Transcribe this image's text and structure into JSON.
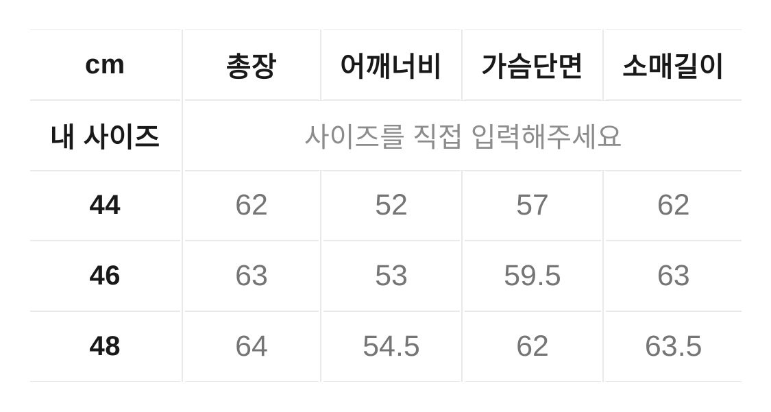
{
  "size_chart": {
    "unit_header": "cm",
    "columns": [
      {
        "key": "total-length",
        "label": "총장"
      },
      {
        "key": "shoulder-width",
        "label": "어깨너비"
      },
      {
        "key": "chest-width",
        "label": "가슴단면"
      },
      {
        "key": "sleeve-length",
        "label": "소매길이"
      }
    ],
    "my_size": {
      "label": "내 사이즈",
      "placeholder": "사이즈를 직접 입력해주세요"
    },
    "rows": [
      {
        "size": "44",
        "values": [
          "62",
          "52",
          "57",
          "62"
        ]
      },
      {
        "size": "46",
        "values": [
          "63",
          "53",
          "59.5",
          "63"
        ]
      },
      {
        "size": "48",
        "values": [
          "64",
          "54.5",
          "62",
          "63.5"
        ]
      }
    ],
    "colors": {
      "border": "#e9e9e9",
      "heading_text": "#191919",
      "value_text": "#757575",
      "placeholder_text": "#8c8c8c"
    }
  }
}
